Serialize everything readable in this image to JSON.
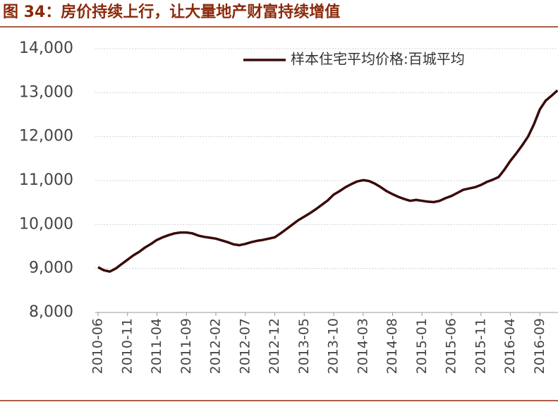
{
  "chart_data": {
    "type": "line",
    "title": "图 34：房价持续上行，让大量地产财富持续增值",
    "categories": [
      "2010-06",
      null,
      null,
      null,
      null,
      "2010-11",
      null,
      null,
      null,
      null,
      "2011-04",
      null,
      null,
      null,
      null,
      "2011-09",
      null,
      null,
      null,
      null,
      "2012-02",
      null,
      null,
      null,
      null,
      "2012-07",
      null,
      null,
      null,
      null,
      "2012-12",
      null,
      null,
      null,
      null,
      "2013-05",
      null,
      null,
      null,
      null,
      "2013-10",
      null,
      null,
      null,
      null,
      "2014-03",
      null,
      null,
      null,
      null,
      "2014-08",
      null,
      null,
      null,
      null,
      "2015-01",
      null,
      null,
      null,
      null,
      "2015-06",
      null,
      null,
      null,
      null,
      "2015-11",
      null,
      null,
      null,
      null,
      "2016-04",
      null,
      null,
      null,
      null,
      "2016-09",
      null,
      null,
      null
    ],
    "series": [
      {
        "name": "样本住宅平均价格:百城平均",
        "color": "#3a0a0a",
        "values": [
          9030,
          8960,
          8930,
          9000,
          9100,
          9200,
          9300,
          9380,
          9480,
          9560,
          9650,
          9710,
          9760,
          9800,
          9820,
          9820,
          9800,
          9750,
          9720,
          9700,
          9680,
          9640,
          9600,
          9550,
          9530,
          9560,
          9600,
          9630,
          9650,
          9680,
          9710,
          9800,
          9900,
          10000,
          10100,
          10180,
          10260,
          10350,
          10450,
          10550,
          10680,
          10760,
          10850,
          10920,
          10980,
          11010,
          10990,
          10930,
          10850,
          10760,
          10690,
          10630,
          10580,
          10540,
          10560,
          10540,
          10520,
          10510,
          10540,
          10600,
          10650,
          10720,
          10790,
          10820,
          10850,
          10900,
          10970,
          11020,
          11080,
          11250,
          11450,
          11620,
          11800,
          12000,
          12280,
          12620,
          12820,
          12930,
          13050
        ]
      }
    ],
    "ylim": [
      8000,
      14000
    ],
    "yticks": [
      {
        "value": 8000,
        "label": "8,000"
      },
      {
        "value": 9000,
        "label": "9,000"
      },
      {
        "value": 10000,
        "label": "10,000"
      },
      {
        "value": 11000,
        "label": "11,000"
      },
      {
        "value": 12000,
        "label": "12,000"
      },
      {
        "value": 13000,
        "label": "13,000"
      },
      {
        "value": 14000,
        "label": "14,000"
      }
    ],
    "grid": true,
    "legend": "top-right"
  }
}
